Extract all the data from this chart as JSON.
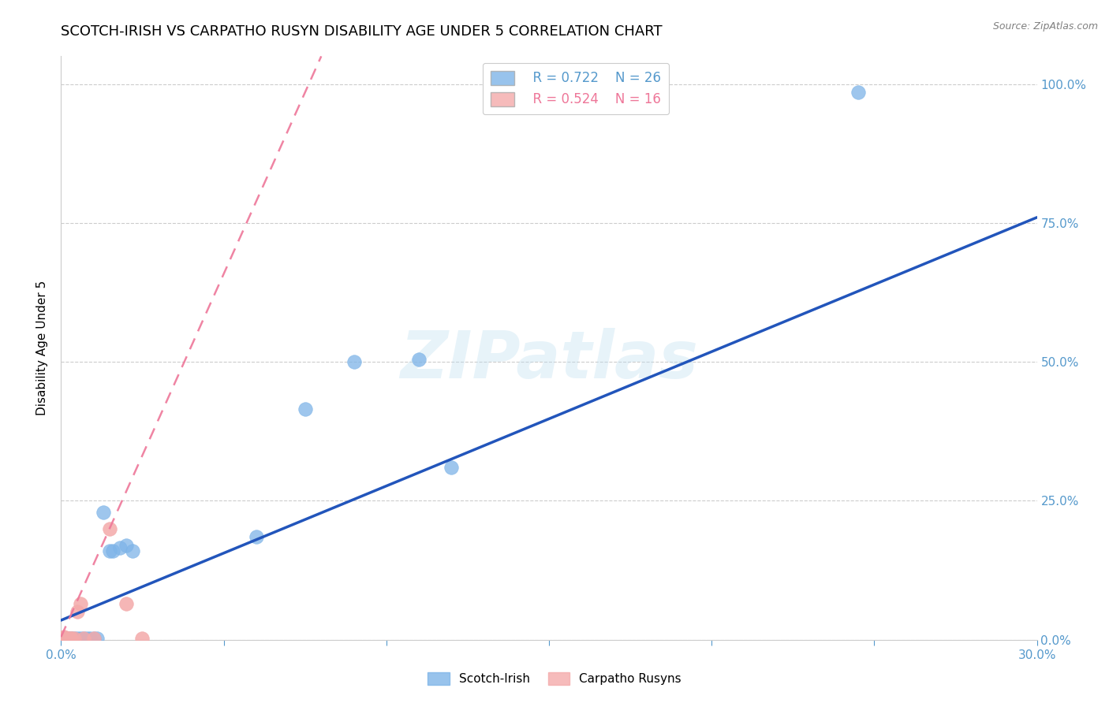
{
  "title": "SCOTCH-IRISH VS CARPATHO RUSYN DISABILITY AGE UNDER 5 CORRELATION CHART",
  "source": "Source: ZipAtlas.com",
  "ylabel": "Disability Age Under 5",
  "xlim": [
    0.0,
    0.3
  ],
  "ylim": [
    0.0,
    1.05
  ],
  "xticks": [
    0.0,
    0.05,
    0.1,
    0.15,
    0.2,
    0.25,
    0.3
  ],
  "xticklabels": [
    "0.0%",
    "",
    "",
    "",
    "",
    "",
    "30.0%"
  ],
  "yticks": [
    0.0,
    0.25,
    0.5,
    0.75,
    1.0
  ],
  "yticklabels": [
    "0.0%",
    "25.0%",
    "50.0%",
    "75.0%",
    "100.0%"
  ],
  "scotch_irish_color": "#7EB4E8",
  "carpatho_rusyn_color": "#F4AAAA",
  "scotch_irish_line_color": "#2255BB",
  "carpatho_rusyn_line_color": "#EE7799",
  "legend_r_scotch": "R = 0.722",
  "legend_n_scotch": "N = 26",
  "legend_r_rusyn": "R = 0.524",
  "legend_n_rusyn": "N = 16",
  "watermark": "ZIPatlas",
  "scotch_irish_x": [
    0.001,
    0.001,
    0.002,
    0.002,
    0.003,
    0.003,
    0.004,
    0.005,
    0.006,
    0.007,
    0.008,
    0.009,
    0.01,
    0.011,
    0.013,
    0.015,
    0.016,
    0.018,
    0.02,
    0.022,
    0.06,
    0.075,
    0.09,
    0.11,
    0.12,
    0.245
  ],
  "scotch_irish_y": [
    0.002,
    0.003,
    0.002,
    0.003,
    0.002,
    0.003,
    0.003,
    0.003,
    0.003,
    0.003,
    0.003,
    0.003,
    0.003,
    0.003,
    0.23,
    0.16,
    0.16,
    0.165,
    0.17,
    0.16,
    0.185,
    0.415,
    0.5,
    0.505,
    0.31,
    0.985
  ],
  "carpatho_rusyn_x": [
    0.001,
    0.001,
    0.001,
    0.001,
    0.002,
    0.002,
    0.003,
    0.003,
    0.004,
    0.005,
    0.006,
    0.007,
    0.01,
    0.015,
    0.02,
    0.025
  ],
  "carpatho_rusyn_y": [
    0.002,
    0.003,
    0.004,
    0.005,
    0.002,
    0.003,
    0.002,
    0.003,
    0.003,
    0.05,
    0.065,
    0.003,
    0.003,
    0.2,
    0.065,
    0.003
  ],
  "blue_line_x": [
    0.0,
    0.3
  ],
  "blue_line_y": [
    0.035,
    0.76
  ],
  "pink_line_x": [
    0.0,
    0.08
  ],
  "pink_line_y": [
    0.005,
    1.05
  ],
  "background_color": "#FFFFFF",
  "grid_color": "#CCCCCC",
  "axis_color": "#CCCCCC",
  "right_yaxis_color": "#5599CC",
  "title_fontsize": 13,
  "tick_fontsize": 11
}
